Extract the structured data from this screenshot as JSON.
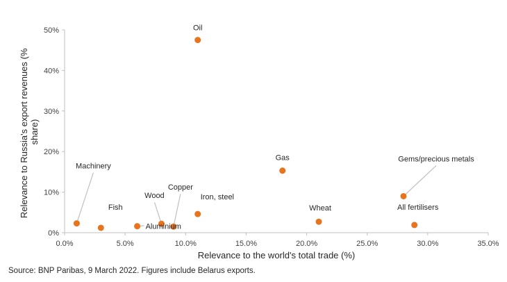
{
  "chart_data": {
    "type": "scatter",
    "title": "",
    "xlabel": "Relevance to the world's total trade (%)",
    "ylabel_lines": [
      "Relevance to Russia's export revenues (%",
      "share)"
    ],
    "xlim": [
      0,
      35
    ],
    "ylim": [
      0,
      50
    ],
    "x_ticks": [
      0,
      5,
      10,
      15,
      20,
      25,
      30,
      35
    ],
    "x_tick_labels": [
      "0.0%",
      "5.0%",
      "10.0%",
      "15.0%",
      "20.0%",
      "25.0%",
      "30.0%",
      "35.0%"
    ],
    "y_ticks": [
      0,
      10,
      20,
      30,
      40,
      50
    ],
    "y_tick_labels": [
      "0%",
      "10%",
      "20%",
      "30%",
      "40%",
      "50%"
    ],
    "grid": false,
    "marker_color": "#E8741E",
    "leader_color": "#BFBFBF",
    "points": [
      {
        "label": "Oil",
        "x": 11.0,
        "y": 47.5
      },
      {
        "label": "Gas",
        "x": 18.0,
        "y": 15.3
      },
      {
        "label": "Gems/precious metals",
        "x": 28.0,
        "y": 9.0
      },
      {
        "label": "All fertilisers",
        "x": 28.9,
        "y": 1.9
      },
      {
        "label": "Wheat",
        "x": 21.0,
        "y": 2.7
      },
      {
        "label": "Iron, steel",
        "x": 11.0,
        "y": 4.6
      },
      {
        "label": "Copper",
        "x": 9.0,
        "y": 1.5
      },
      {
        "label": "Aluminium",
        "x": 6.0,
        "y": 1.6
      },
      {
        "label": "Wood",
        "x": 8.0,
        "y": 2.2
      },
      {
        "label": "Fish",
        "x": 3.0,
        "y": 1.2
      },
      {
        "label": "Machinery",
        "x": 1.0,
        "y": 2.3
      }
    ]
  },
  "source": "Source: BNP Paribas, 9 March 2022. Figures include Belarus exports."
}
